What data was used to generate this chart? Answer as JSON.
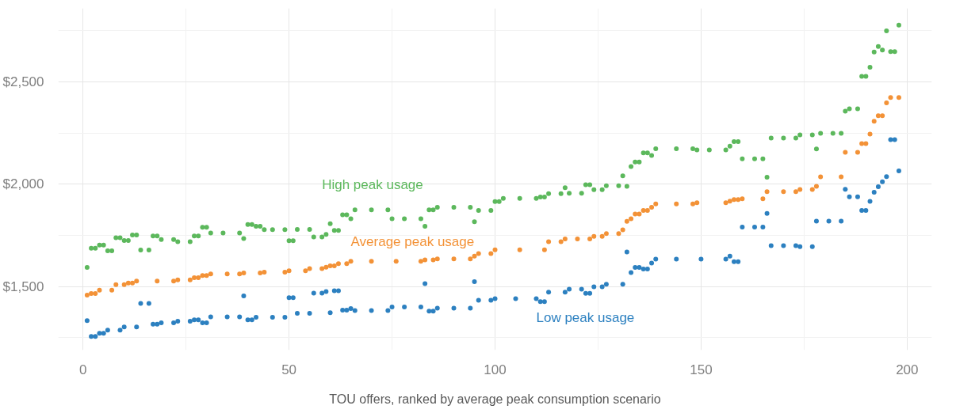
{
  "chart_data": {
    "type": "scatter",
    "xlabel": "TOU offers, ranked by average peak consumption scenario",
    "xlim": [
      -6,
      206
    ],
    "xticks": [
      0,
      50,
      100,
      150,
      200
    ],
    "ylim": [
      1190,
      2860
    ],
    "yticks": [
      {
        "value": 1500,
        "label": "$1,500"
      },
      {
        "value": 2000,
        "label": "$2,000"
      },
      {
        "value": 2500,
        "label": "$2,500"
      }
    ],
    "grid": true,
    "marker": "circle",
    "legend": false,
    "series": [
      {
        "name": "High peak usage",
        "color": "#5cb85c",
        "x": [
          1,
          2,
          3,
          4,
          5,
          6,
          7,
          8,
          9,
          10,
          11,
          12,
          13,
          14,
          16,
          17,
          18,
          19,
          22,
          23,
          26,
          27,
          28,
          29,
          30,
          31,
          34,
          38,
          39,
          40,
          41,
          42,
          43,
          44,
          46,
          49,
          50,
          51,
          52,
          55,
          56,
          58,
          59,
          60,
          61,
          62,
          63,
          64,
          65,
          66,
          70,
          74,
          75,
          78,
          82,
          83,
          84,
          85,
          86,
          90,
          94,
          95,
          96,
          99,
          100,
          101,
          102,
          106,
          110,
          111,
          112,
          113,
          116,
          117,
          118,
          121,
          122,
          123,
          124,
          126,
          127,
          130,
          131,
          132,
          133,
          134,
          135,
          136,
          137,
          138,
          139,
          144,
          148,
          149,
          152,
          156,
          157,
          158,
          159,
          160,
          163,
          165,
          166,
          167,
          170,
          173,
          174,
          177,
          178,
          179,
          182,
          184,
          185,
          186,
          188,
          189,
          190,
          191,
          192,
          193,
          194,
          195,
          196,
          197,
          198
        ],
        "values": [
          1594,
          1688,
          1688,
          1703,
          1703,
          1675,
          1675,
          1739,
          1739,
          1725,
          1725,
          1752,
          1752,
          1679,
          1679,
          1748,
          1748,
          1730,
          1730,
          1720,
          1720,
          1748,
          1748,
          1790,
          1790,
          1762,
          1762,
          1762,
          1735,
          1804,
          1804,
          1795,
          1795,
          1779,
          1779,
          1779,
          1724,
          1724,
          1780,
          1780,
          1743,
          1743,
          1755,
          1808,
          1775,
          1775,
          1851,
          1851,
          1832,
          1875,
          1875,
          1875,
          1832,
          1832,
          1832,
          1795,
          1875,
          1875,
          1888,
          1888,
          1888,
          1817,
          1872,
          1872,
          1916,
          1916,
          1931,
          1931,
          1931,
          1938,
          1938,
          1954,
          1954,
          1983,
          1956,
          1956,
          1998,
          1998,
          1974,
          1974,
          1993,
          1993,
          2041,
          1990,
          2087,
          2109,
          2109,
          2154,
          2154,
          2141,
          2174,
          2174,
          2174,
          2168,
          2168,
          2168,
          2186,
          2209,
          2209,
          2125,
          2125,
          2125,
          2035,
          2226,
          2226,
          2226,
          2241,
          2241,
          2173,
          2249,
          2249,
          2249,
          2357,
          2369,
          2369,
          2528,
          2528,
          2572,
          2646,
          2673,
          2656,
          2750,
          2648,
          2648,
          2778
        ]
      },
      {
        "name": "Average peak usage",
        "color": "#f39237",
        "x": [
          1,
          2,
          3,
          4,
          7,
          8,
          10,
          11,
          12,
          13,
          18,
          22,
          23,
          26,
          27,
          28,
          29,
          30,
          31,
          35,
          38,
          39,
          43,
          44,
          49,
          50,
          54,
          55,
          58,
          59,
          60,
          61,
          62,
          64,
          65,
          70,
          76,
          82,
          83,
          85,
          86,
          90,
          94,
          95,
          96,
          99,
          100,
          106,
          112,
          113,
          116,
          117,
          120,
          123,
          124,
          126,
          127,
          130,
          131,
          132,
          133,
          134,
          135,
          136,
          137,
          138,
          139,
          144,
          148,
          149,
          156,
          157,
          158,
          159,
          160,
          165,
          166,
          170,
          173,
          174,
          177,
          178,
          179,
          184,
          185,
          188,
          189,
          190,
          191,
          192,
          193,
          194,
          195,
          196,
          198
        ],
        "values": [
          1459,
          1466,
          1466,
          1483,
          1483,
          1510,
          1510,
          1518,
          1518,
          1527,
          1527,
          1527,
          1533,
          1533,
          1544,
          1544,
          1554,
          1554,
          1562,
          1562,
          1562,
          1567,
          1567,
          1571,
          1571,
          1578,
          1578,
          1588,
          1588,
          1595,
          1602,
          1602,
          1612,
          1612,
          1624,
          1624,
          1624,
          1624,
          1631,
          1631,
          1636,
          1636,
          1636,
          1649,
          1662,
          1662,
          1680,
          1680,
          1680,
          1720,
          1720,
          1733,
          1733,
          1733,
          1746,
          1746,
          1759,
          1759,
          1778,
          1819,
          1832,
          1855,
          1855,
          1872,
          1872,
          1888,
          1904,
          1904,
          1904,
          1910,
          1910,
          1918,
          1925,
          1925,
          1929,
          1929,
          1964,
          1964,
          1964,
          1975,
          1975,
          1990,
          2037,
          2037,
          2156,
          2156,
          2199,
          2199,
          2245,
          2308,
          2335,
          2335,
          2398,
          2424,
          2424
        ]
      },
      {
        "name": "Low peak usage",
        "color": "#2c80c0",
        "x": [
          1,
          2,
          3,
          4,
          5,
          6,
          9,
          10,
          13,
          14,
          16,
          17,
          18,
          19,
          22,
          23,
          26,
          27,
          28,
          29,
          30,
          31,
          35,
          38,
          39,
          40,
          41,
          42,
          46,
          49,
          50,
          51,
          52,
          55,
          56,
          58,
          59,
          60,
          61,
          62,
          63,
          64,
          65,
          66,
          70,
          74,
          75,
          78,
          82,
          83,
          84,
          85,
          86,
          90,
          94,
          95,
          96,
          99,
          100,
          105,
          110,
          111,
          112,
          113,
          117,
          118,
          121,
          122,
          123,
          124,
          126,
          127,
          131,
          132,
          133,
          134,
          135,
          136,
          137,
          138,
          139,
          144,
          150,
          156,
          157,
          158,
          159,
          160,
          163,
          165,
          166,
          167,
          170,
          173,
          174,
          177,
          178,
          181,
          184,
          185,
          186,
          188,
          189,
          190,
          191,
          192,
          193,
          194,
          195,
          196,
          197,
          198
        ],
        "values": [
          1334,
          1257,
          1257,
          1272,
          1272,
          1288,
          1288,
          1303,
          1303,
          1418,
          1418,
          1317,
          1317,
          1323,
          1323,
          1331,
          1331,
          1338,
          1338,
          1323,
          1323,
          1352,
          1352,
          1352,
          1455,
          1338,
          1338,
          1350,
          1350,
          1350,
          1446,
          1446,
          1370,
          1370,
          1468,
          1468,
          1476,
          1373,
          1480,
          1480,
          1385,
          1385,
          1393,
          1383,
          1383,
          1383,
          1401,
          1401,
          1401,
          1515,
          1380,
          1380,
          1395,
          1395,
          1395,
          1524,
          1434,
          1434,
          1441,
          1441,
          1441,
          1427,
          1427,
          1473,
          1473,
          1488,
          1488,
          1467,
          1467,
          1499,
          1499,
          1512,
          1512,
          1669,
          1569,
          1594,
          1594,
          1586,
          1586,
          1615,
          1635,
          1635,
          1635,
          1635,
          1649,
          1622,
          1622,
          1791,
          1791,
          1791,
          1858,
          1700,
          1700,
          1700,
          1695,
          1695,
          1820,
          1820,
          1820,
          1976,
          1939,
          1939,
          1872,
          1872,
          1917,
          1961,
          1988,
          2012,
          2038,
          2218,
          2218,
          2066
        ]
      }
    ]
  }
}
